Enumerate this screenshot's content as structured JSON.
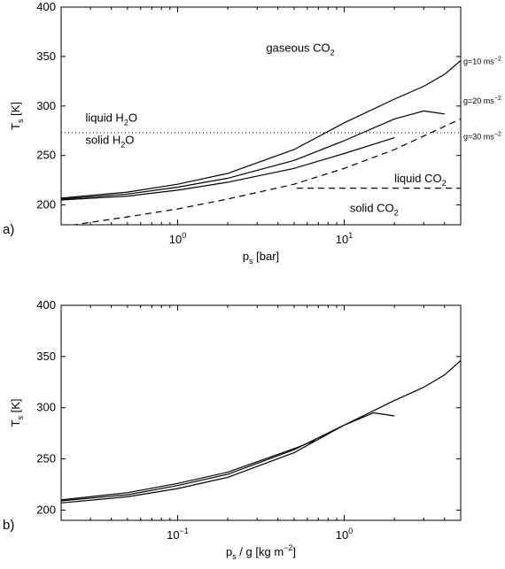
{
  "chart_data": [
    {
      "type": "line",
      "panel_label": "a)",
      "xlabel": "p",
      "xlabel_sub": "s",
      "xlabel_unit": " [bar]",
      "ylabel": "T",
      "ylabel_sub": "s",
      "ylabel_unit": " [K]",
      "x_scale": "log",
      "xlim": [
        0.2,
        50
      ],
      "ylim": [
        180,
        400
      ],
      "y_ticks": [
        "200",
        "250",
        "300",
        "350",
        "400"
      ],
      "x_ticks": [
        {
          "value": 1,
          "base": "10",
          "exp": "0"
        },
        {
          "value": 10,
          "base": "10",
          "exp": "1"
        }
      ],
      "grid": false,
      "series": [
        {
          "style": "solid",
          "x": [
            0.2,
            0.5,
            1,
            2,
            5,
            10,
            20,
            30,
            40,
            50
          ],
          "y": [
            207,
            213,
            221,
            232,
            256,
            283,
            307,
            320,
            332,
            346
          ]
        },
        {
          "style": "solid",
          "x": [
            0.2,
            0.5,
            1,
            2,
            5,
            10,
            20,
            30,
            40
          ],
          "y": [
            206,
            211,
            218,
            227,
            245,
            265,
            287,
            295,
            292
          ]
        },
        {
          "style": "solid",
          "x": [
            0.2,
            0.5,
            1,
            2,
            5,
            10,
            20
          ],
          "y": [
            205,
            209,
            215,
            223,
            237,
            252,
            268
          ]
        },
        {
          "style": "dashed",
          "x": [
            0.2,
            0.5,
            1,
            2,
            5,
            10,
            20,
            50
          ],
          "y": [
            178,
            188,
            196,
            206,
            221,
            237,
            256,
            287
          ]
        },
        {
          "style": "dashed",
          "x": [
            5.2,
            50
          ],
          "y": [
            217,
            217
          ]
        },
        {
          "style": "dotted",
          "x": [
            0.2,
            50
          ],
          "y": [
            273,
            273
          ]
        }
      ],
      "annotations": [
        {
          "text": "gaseous CO",
          "sub": "2",
          "x": 3.4,
          "y": 355
        },
        {
          "text": "liquid H",
          "sub": "2",
          "tail": "O",
          "x": 0.28,
          "y": 284
        },
        {
          "text": "solid H",
          "sub": "2",
          "tail": "O",
          "x": 0.28,
          "y": 262
        },
        {
          "text": "liquid CO",
          "sub": "2",
          "x": 20,
          "y": 223
        },
        {
          "text": "solid CO",
          "sub": "2",
          "x": 10.8,
          "y": 193
        }
      ],
      "right_labels": [
        {
          "text": "g=10 ms",
          "sup": "−2",
          "y": 346
        },
        {
          "text": "g=20 ms",
          "sup": "−2",
          "y": 306
        },
        {
          "text": "g=30 ms",
          "sup": "−2",
          "y": 270
        }
      ]
    },
    {
      "type": "line",
      "panel_label": "b)",
      "xlabel": "p",
      "xlabel_sub": "s",
      "xlabel_unit": " / g [kg m",
      "xlabel_sup": "−2",
      "xlabel_tail": "]",
      "ylabel": "T",
      "ylabel_sub": "s",
      "ylabel_unit": " [K]",
      "x_scale": "log",
      "xlim": [
        0.02,
        5
      ],
      "ylim": [
        190,
        400
      ],
      "y_ticks": [
        "200",
        "250",
        "300",
        "350",
        "400"
      ],
      "x_ticks": [
        {
          "value": 0.1,
          "base": "10",
          "exp": "−1"
        },
        {
          "value": 1,
          "base": "10",
          "exp": "0"
        }
      ],
      "grid": false,
      "series": [
        {
          "style": "solid",
          "x": [
            0.02,
            0.05,
            0.1,
            0.2,
            0.5,
            1,
            2,
            3,
            4,
            5
          ],
          "y": [
            207,
            213,
            221,
            232,
            256,
            283,
            307,
            320,
            332,
            346
          ]
        },
        {
          "style": "solid",
          "x": [
            0.02,
            0.05,
            0.1,
            0.2,
            0.5,
            1,
            1.5,
            2
          ],
          "y": [
            209,
            215,
            224,
            235,
            259,
            283,
            295,
            292
          ]
        },
        {
          "style": "solid",
          "x": [
            0.02,
            0.05,
            0.1,
            0.2,
            0.5,
            0.67
          ],
          "y": [
            210,
            217,
            226,
            237,
            260,
            268
          ]
        }
      ]
    }
  ]
}
